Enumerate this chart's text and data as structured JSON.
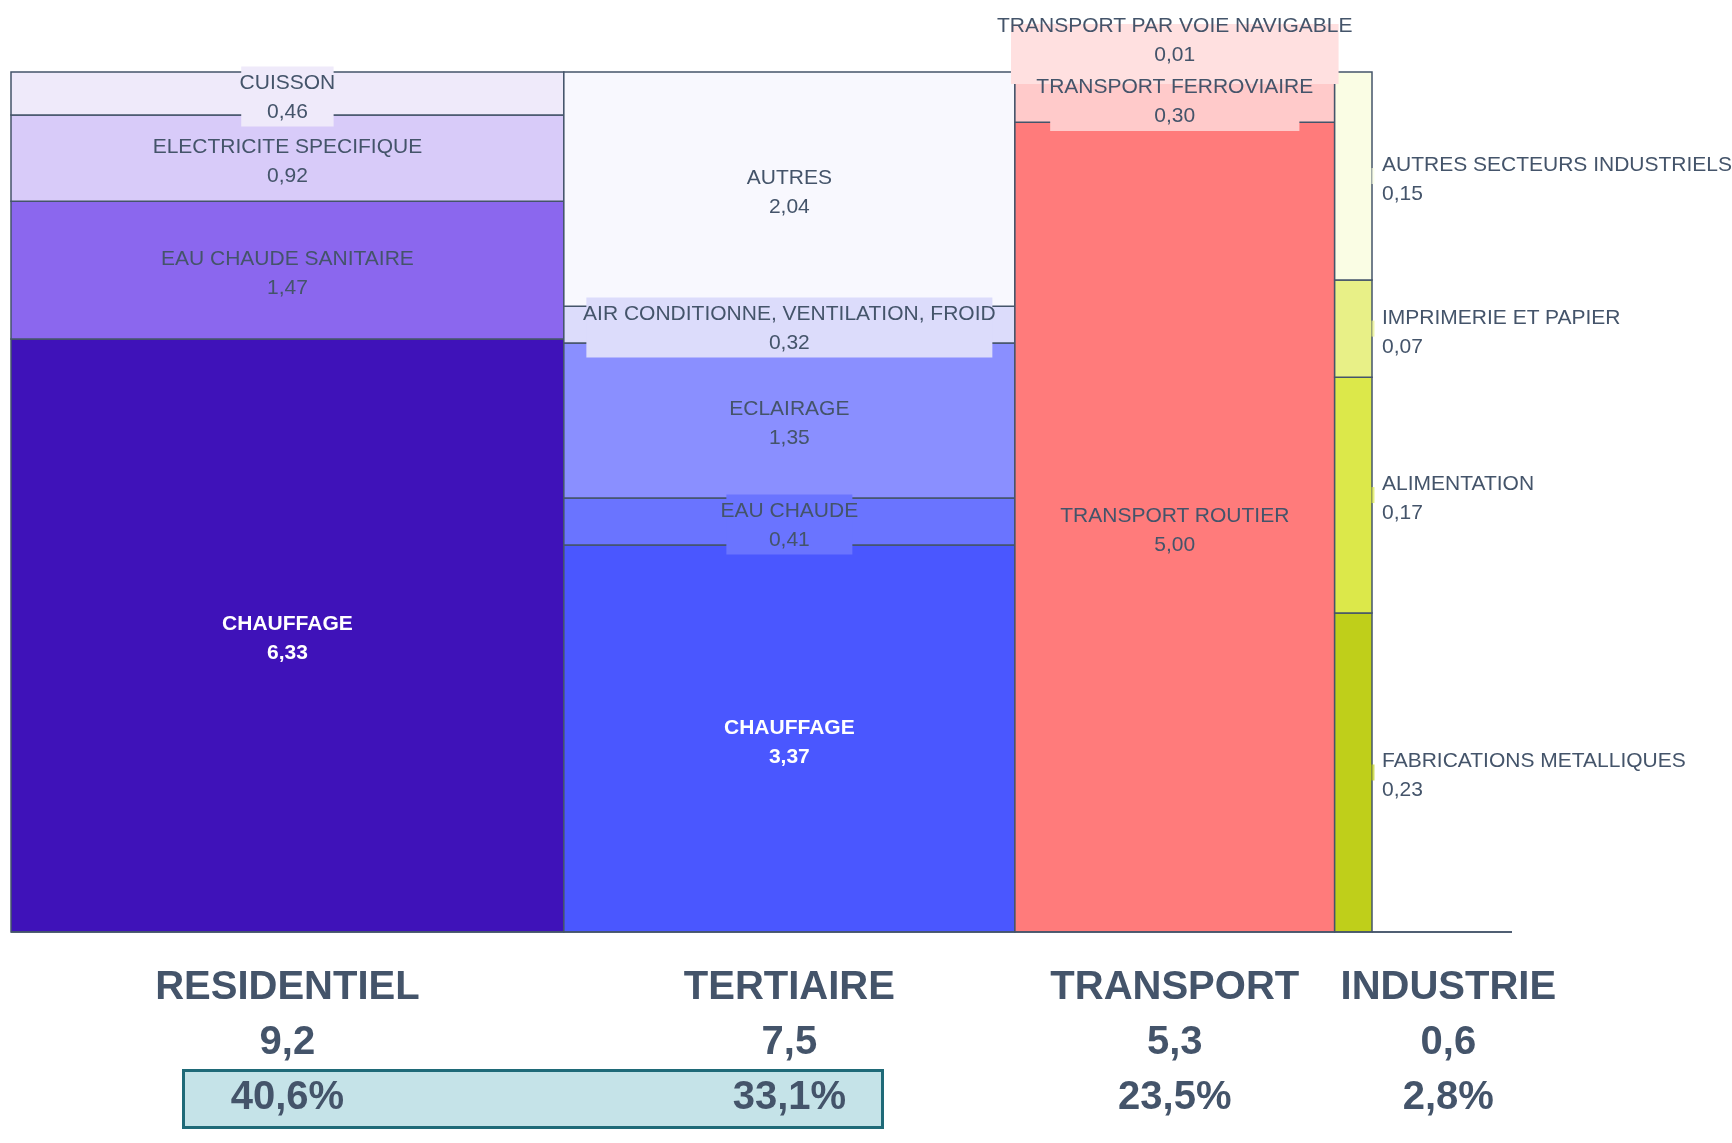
{
  "chart_data": {
    "type": "other",
    "categories": [
      "RESIDENTIEL",
      "TERTIAIRE",
      "TRANSPORT",
      "INDUSTRIE"
    ],
    "series": [
      {
        "name": "CHAUFFAGE",
        "color": "#3f12b9",
        "values": [
          6.33,
          null,
          null,
          null
        ],
        "value_labels": [
          "6,33",
          null,
          null,
          null
        ]
      },
      {
        "name": "EAU CHAUDE SANITAIRE",
        "color": "#8b67ee",
        "values": [
          1.47,
          null,
          null,
          null
        ],
        "value_labels": [
          "1,47",
          null,
          null,
          null
        ]
      },
      {
        "name": "ELECTRICITE SPECIFIQUE",
        "color": "#d8cbf9",
        "values": [
          0.92,
          null,
          null,
          null
        ],
        "value_labels": [
          "0,92",
          null,
          null,
          null
        ]
      },
      {
        "name": "CUISSON",
        "color": "#efeafa",
        "values": [
          0.46,
          null,
          null,
          null
        ],
        "value_labels": [
          "0,46",
          null,
          null,
          null
        ]
      },
      {
        "name": "CHAUFFAGE",
        "color": "#4a57ff",
        "values": [
          null,
          3.37,
          null,
          null
        ],
        "value_labels": [
          null,
          "3,37",
          null,
          null
        ]
      },
      {
        "name": "EAU CHAUDE",
        "color": "#6a74ff",
        "values": [
          null,
          0.41,
          null,
          null
        ],
        "value_labels": [
          null,
          "0,41",
          null,
          null
        ]
      },
      {
        "name": "ECLAIRAGE",
        "color": "#8a8fff",
        "values": [
          null,
          1.35,
          null,
          null
        ],
        "value_labels": [
          null,
          "1,35",
          null,
          null
        ]
      },
      {
        "name": "AIR CONDITIONNE, VENTILATION, FROID",
        "color": "#dcdcfb",
        "values": [
          null,
          0.32,
          null,
          null
        ],
        "value_labels": [
          null,
          "0,32",
          null,
          null
        ]
      },
      {
        "name": "AUTRES",
        "color": "#f8f8fe",
        "values": [
          null,
          2.04,
          null,
          null
        ],
        "value_labels": [
          null,
          "2,04",
          null,
          null
        ]
      },
      {
        "name": "TRANSPORT ROUTIER",
        "color": "#ff7b7b",
        "values": [
          null,
          null,
          5.0,
          null
        ],
        "value_labels": [
          null,
          null,
          "5,00",
          null
        ]
      },
      {
        "name": "TRANSPORT FERROVIAIRE",
        "color": "#ffcaca",
        "values": [
          null,
          null,
          0.3,
          null
        ],
        "value_labels": [
          null,
          null,
          "0,30",
          null
        ]
      },
      {
        "name": "TRANSPORT PAR VOIE NAVIGABLE",
        "color": "#ffe0e0",
        "values": [
          null,
          null,
          0.01,
          null
        ],
        "value_labels": [
          null,
          null,
          "0,01",
          null
        ]
      },
      {
        "name": "FABRICATIONS METALLIQUES",
        "color": "#bfcf1a",
        "values": [
          null,
          null,
          null,
          0.23
        ],
        "value_labels": [
          null,
          null,
          null,
          "0,23"
        ]
      },
      {
        "name": "ALIMENTATION",
        "color": "#dce84a",
        "values": [
          null,
          null,
          null,
          0.17
        ],
        "value_labels": [
          null,
          null,
          null,
          "0,17"
        ]
      },
      {
        "name": "IMPRIMERIE ET PAPIER",
        "color": "#e8f087",
        "values": [
          null,
          null,
          null,
          0.07
        ],
        "value_labels": [
          null,
          null,
          null,
          "0,07"
        ]
      },
      {
        "name": "AUTRES SECTEURS INDUSTRIELS",
        "color": "#fafde4",
        "values": [
          null,
          null,
          null,
          0.15
        ],
        "value_labels": [
          null,
          null,
          null,
          "0,15"
        ]
      }
    ],
    "totals": [
      "9,2",
      "7,5",
      "5,3",
      "0,6"
    ],
    "annotations": [
      "40,6%",
      "33,1%",
      "23,5%",
      "2,8%"
    ]
  }
}
